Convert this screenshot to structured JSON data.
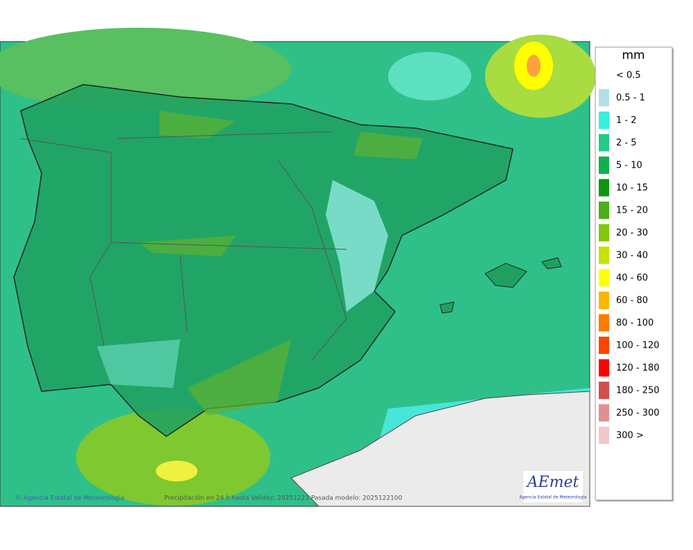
{
  "legend": {
    "title": "mm",
    "items": [
      {
        "label": "< 0.5"
      },
      {
        "label": "0.5 - 1",
        "color": "#b0e0e6"
      },
      {
        "label": "1 - 2",
        "color": "#38f0dc"
      },
      {
        "label": "2 - 5",
        "color": "#22cc88"
      },
      {
        "label": "5 - 10",
        "color": "#10b050"
      },
      {
        "label": "10 - 15",
        "color": "#0a9612"
      },
      {
        "label": "15 - 20",
        "color": "#4cae18"
      },
      {
        "label": "20 - 30",
        "color": "#82c80c"
      },
      {
        "label": "30 - 40",
        "color": "#c4e400"
      },
      {
        "label": "40 - 60",
        "color": "#ffff00"
      },
      {
        "label": "60 - 80",
        "color": "#ffb400"
      },
      {
        "label": "80 - 100",
        "color": "#ff7a00"
      },
      {
        "label": "100 - 120",
        "color": "#ff4400"
      },
      {
        "label": "120 - 180",
        "color": "#ff0000"
      },
      {
        "label": "180 - 250",
        "color": "#d05050"
      },
      {
        "label": "250 - 300",
        "color": "#e09090"
      },
      {
        "label": "300 >",
        "color": "#f2c8c8"
      }
    ]
  },
  "footer": {
    "credit": "© Agencia Estatal de Meteorología",
    "caption": "Precipitación en 24 h hasta Validez: 20251221 Pasada modelo: 2025122100"
  },
  "logo": {
    "name": "AEmet",
    "subtitle": "Agencia Estatal de Meteorología"
  }
}
